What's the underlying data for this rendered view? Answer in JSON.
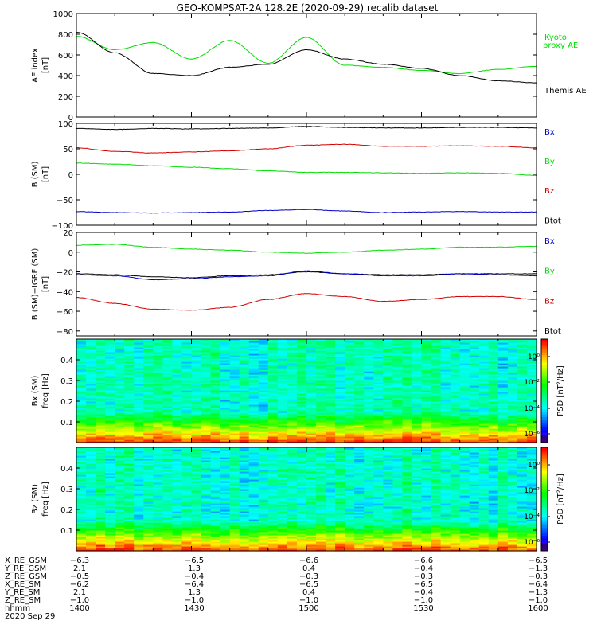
{
  "title": "GEO-KOMPSAT-2A 128.2E (2020-09-29) recalib dataset",
  "colors": {
    "black": "#000000",
    "red": "#d40000",
    "green": "#00dd00",
    "blue": "#0000cc"
  },
  "panels": [
    {
      "key": "ae",
      "ylabel": "AE index",
      "yunit": "[nT]",
      "ylim": [
        0,
        1000
      ],
      "yticks": [
        "0",
        "200",
        "400",
        "600",
        "800",
        "1000"
      ],
      "legend": [
        {
          "label": "Kyoto",
          "color": "green"
        },
        {
          "label": "proxy AE",
          "color": "green"
        },
        {
          "label": "Themis AE",
          "color": "black"
        }
      ]
    },
    {
      "key": "b",
      "ylabel": "B (SM)",
      "yunit": "[nT]",
      "ylim": [
        -100,
        100
      ],
      "yticks": [
        "−100",
        "−50",
        "0",
        "50",
        "100"
      ],
      "legend": [
        {
          "label": "Bx",
          "color": "blue"
        },
        {
          "label": "By",
          "color": "green"
        },
        {
          "label": "Bz",
          "color": "red"
        },
        {
          "label": "Btot",
          "color": "black"
        }
      ]
    },
    {
      "key": "db",
      "ylabel": "B (SM)−IGRF (SM)",
      "yunit": "[nT]",
      "ylim": [
        -85,
        20
      ],
      "yticks": [
        "−80",
        "−60",
        "−40",
        "−20",
        "0",
        "20"
      ],
      "legend": [
        {
          "label": "Bx",
          "color": "blue"
        },
        {
          "label": "By",
          "color": "green"
        },
        {
          "label": "Bz",
          "color": "red"
        },
        {
          "label": "Btot",
          "color": "black"
        }
      ]
    },
    {
      "key": "specx",
      "ylabel": "Bx (SM)",
      "yunit": "freq [Hz]",
      "ylim": [
        0,
        0.5
      ],
      "yticks": [
        "0.1",
        "0.2",
        "0.3",
        "0.4"
      ],
      "cbar_label": "PSD [nT²/Hz]",
      "cbar_ticks": [
        "10⁰",
        "10⁻²",
        "10⁻⁴",
        "10⁻⁶"
      ]
    },
    {
      "key": "specz",
      "ylabel": "Bz (SM)",
      "yunit": "freq [Hz]",
      "ylim": [
        0,
        0.5
      ],
      "yticks": [
        "0.1",
        "0.2",
        "0.3",
        "0.4"
      ],
      "cbar_label": "PSD [nT²/Hz]",
      "cbar_ticks": [
        "10⁰",
        "10⁻²",
        "10⁻⁴",
        "10⁻⁶"
      ]
    }
  ],
  "chart_data": {
    "type": "line",
    "x": [
      "1400",
      "1410",
      "1420",
      "1430",
      "1440",
      "1450",
      "1500",
      "1510",
      "1520",
      "1530",
      "1540",
      "1550",
      "1600"
    ],
    "series": [
      {
        "panel": "ae",
        "name": "Kyoto proxy AE",
        "color": "green",
        "values": [
          780,
          650,
          720,
          560,
          740,
          520,
          770,
          500,
          480,
          450,
          420,
          460,
          490
        ]
      },
      {
        "panel": "ae",
        "name": "Themis AE",
        "color": "black",
        "values": [
          820,
          620,
          420,
          400,
          480,
          510,
          650,
          560,
          510,
          470,
          400,
          350,
          330
        ]
      },
      {
        "panel": "b",
        "name": "Btot",
        "color": "black",
        "values": [
          90,
          88,
          90,
          89,
          90,
          91,
          94,
          92,
          91,
          91,
          92,
          92,
          91
        ]
      },
      {
        "panel": "b",
        "name": "Bz",
        "color": "red",
        "values": [
          52,
          45,
          42,
          44,
          46,
          50,
          57,
          59,
          55,
          55,
          56,
          55,
          52
        ]
      },
      {
        "panel": "b",
        "name": "By",
        "color": "green",
        "values": [
          22,
          20,
          17,
          14,
          11,
          7,
          4,
          4,
          3,
          2,
          3,
          2,
          -2
        ]
      },
      {
        "panel": "b",
        "name": "Bx",
        "color": "blue",
        "values": [
          -73,
          -75,
          -76,
          -75,
          -74,
          -71,
          -69,
          -72,
          -75,
          -74,
          -73,
          -74,
          -74
        ]
      },
      {
        "panel": "db",
        "name": "By",
        "color": "green",
        "values": [
          7,
          8,
          5,
          3,
          2,
          0,
          -1,
          0,
          2,
          3,
          5,
          5,
          6
        ]
      },
      {
        "panel": "db",
        "name": "Btot",
        "color": "black",
        "values": [
          -22,
          -23,
          -25,
          -26,
          -24,
          -23,
          -20,
          -22,
          -23,
          -23,
          -22,
          -22,
          -22
        ]
      },
      {
        "panel": "db",
        "name": "Bx",
        "color": "blue",
        "values": [
          -23,
          -24,
          -28,
          -27,
          -25,
          -24,
          -19,
          -22,
          -24,
          -24,
          -22,
          -23,
          -24
        ]
      },
      {
        "panel": "db",
        "name": "Bz",
        "color": "red",
        "values": [
          -46,
          -52,
          -58,
          -59,
          -56,
          -48,
          -42,
          -45,
          -50,
          -48,
          -45,
          -45,
          -48
        ]
      }
    ]
  },
  "ephemeris": {
    "labels": [
      "X_RE_GSM",
      "Y_RE_GSM",
      "Z_RE_GSM",
      "X_RE_SM",
      "Y_RE_SM",
      "Z_RE_SM",
      "hhmm",
      "2020 Sep 29"
    ],
    "columns": [
      [
        "−6.3",
        "2.1",
        "−0.5",
        "−6.2",
        "2.1",
        "−1.0",
        "1400"
      ],
      [
        "−6.5",
        "1.3",
        "−0.4",
        "−6.4",
        "1.3",
        "−1.0",
        "1430"
      ],
      [
        "−6.6",
        "0.4",
        "−0.3",
        "−6.5",
        "0.4",
        "−1.0",
        "1500"
      ],
      [
        "−6.6",
        "−0.4",
        "−0.3",
        "−6.5",
        "−0.4",
        "−1.0",
        "1530"
      ],
      [
        "−6.5",
        "−1.3",
        "−0.3",
        "−6.4",
        "−1.3",
        "−1.0",
        "1600"
      ]
    ]
  }
}
